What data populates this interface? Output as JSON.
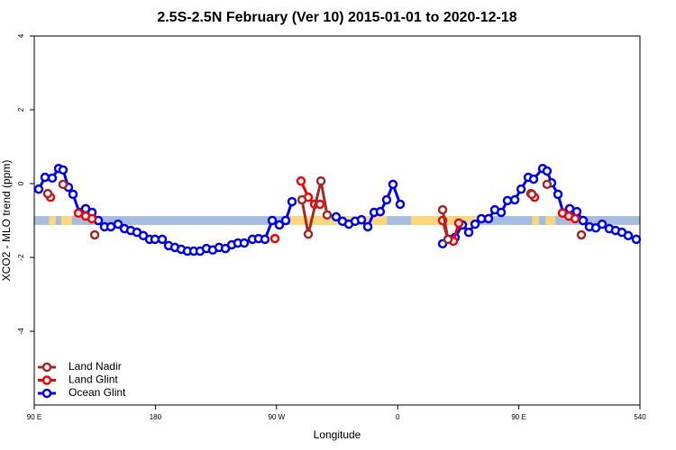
{
  "chart_data": {
    "type": "line",
    "title": "2.5S-2.5N February (Ver 10)   2015-01-01 to 2020-12-18",
    "x_label": "Longitude",
    "y_label": "XCO2 - MLO trend (ppm)",
    "xlim": [
      90,
      540
    ],
    "ylim": [
      -6,
      4
    ],
    "xticks": [
      {
        "value": 90,
        "label": "90 E"
      },
      180,
      {
        "value": 270,
        "label": "90 W"
      },
      {
        "value": 360,
        "label": "0"
      },
      {
        "value": 450,
        "label": "90 E"
      },
      540
    ],
    "yticks": [
      -4,
      -2,
      0,
      2,
      4
    ],
    "legend": "bottom-left",
    "band": {
      "y_range": [
        -1.12,
        -0.88
      ],
      "color": "#a6bddd",
      "land_color": "#fcd87c",
      "land_segments": [
        [
          101,
          106
        ],
        [
          110,
          118
        ],
        [
          280,
          352
        ],
        [
          370,
          420
        ],
        [
          460,
          465
        ],
        [
          470,
          477
        ]
      ]
    },
    "series": [
      {
        "name": "Land Nadir",
        "color": "#a52a2a",
        "x": [
          100.0,
          null,
          111.4,
          null,
          134.9,
          null,
          288.9,
          293.6,
          303.0,
          307.6,
          null,
          393.4,
          397.4,
          null,
          459.7,
          null,
          471.0,
          null,
          496.5
        ],
        "values": [
          -0.27,
          null,
          -0.02,
          null,
          -1.39,
          null,
          -0.44,
          -1.37,
          0.07,
          -0.85,
          null,
          -0.71,
          -1.51,
          null,
          -0.29,
          null,
          -0.02,
          null,
          -1.39
        ]
      },
      {
        "name": "Land Glint",
        "color": "#ff0000",
        "x": [
          100.0,
          102.1,
          null,
          122.8,
          128.2,
          132.9,
          null,
          268.8,
          null,
          288.2,
          293.6,
          298.3,
          302.3,
          null,
          393.4,
          397.4,
          401.4,
          405.4,
          null,
          459.0,
          461.7,
          null,
          482.4,
          487.1,
          491.8
        ],
        "values": [
          -0.27,
          -0.37,
          null,
          -0.8,
          -0.88,
          -0.95,
          null,
          -1.49,
          null,
          0.07,
          -0.37,
          -0.56,
          -0.56,
          null,
          -1.0,
          -1.51,
          -1.56,
          -1.07,
          null,
          -0.27,
          -0.37,
          null,
          -0.8,
          -0.88,
          -0.95
        ]
      },
      {
        "name": "Ocean Glint",
        "color": "#0000ff",
        "x": [
          93.3,
          98.0,
          103.4,
          108.1,
          111.4,
          115.4,
          118.8,
          123.5,
          128.2,
          132.9,
          137.6,
          142.2,
          146.9,
          152.3,
          157.0,
          161.7,
          166.3,
          171.0,
          175.7,
          179.7,
          185.1,
          189.8,
          194.5,
          199.2,
          203.8,
          208.5,
          213.2,
          217.9,
          222.6,
          227.3,
          232.0,
          236.7,
          241.3,
          246.0,
          252.1,
          256.7,
          261.4,
          266.8,
          272.1,
          276.8,
          281.5,
          null,
          314.3,
          319.0,
          323.7,
          328.4,
          333.1,
          337.8,
          342.5,
          347.1,
          351.8,
          356.5,
          361.9,
          null,
          393.4,
          398.0,
          402.7,
          408.1,
          412.8,
          417.5,
          422.2,
          427.5,
          432.2,
          436.9,
          441.6,
          447.0,
          451.7,
          457.0,
          461.0,
          467.7,
          471.0,
          474.4,
          479.1,
          483.1,
          487.8,
          493.1,
          497.8,
          502.5,
          507.2,
          511.9,
          517.2,
          521.9,
          526.6,
          531.3,
          537.3
        ],
        "values": [
          -0.15,
          0.17,
          0.15,
          0.41,
          0.37,
          -0.1,
          -0.29,
          -0.78,
          -0.68,
          -0.78,
          -1.0,
          -1.17,
          -1.17,
          -1.1,
          -1.22,
          -1.27,
          -1.32,
          -1.41,
          -1.51,
          -1.51,
          -1.51,
          -1.68,
          -1.73,
          -1.78,
          -1.83,
          -1.83,
          -1.83,
          -1.76,
          -1.8,
          -1.73,
          -1.76,
          -1.66,
          -1.61,
          -1.61,
          -1.51,
          -1.49,
          -1.51,
          -1.0,
          -1.12,
          -1.0,
          -0.49,
          null,
          -0.9,
          -1.02,
          -1.1,
          -1.02,
          -0.98,
          -1.17,
          -0.78,
          -0.76,
          -0.44,
          -0.02,
          -0.56,
          null,
          -1.63,
          -1.51,
          -1.46,
          -1.12,
          -1.32,
          -1.1,
          -0.95,
          -0.95,
          -0.71,
          -0.78,
          -0.46,
          -0.44,
          -0.15,
          0.17,
          0.12,
          0.41,
          0.34,
          0.02,
          -0.29,
          -0.8,
          -0.68,
          -0.76,
          -1.0,
          -1.17,
          -1.2,
          -1.1,
          -1.22,
          -1.27,
          -1.32,
          -1.41,
          -1.51
        ]
      }
    ]
  }
}
